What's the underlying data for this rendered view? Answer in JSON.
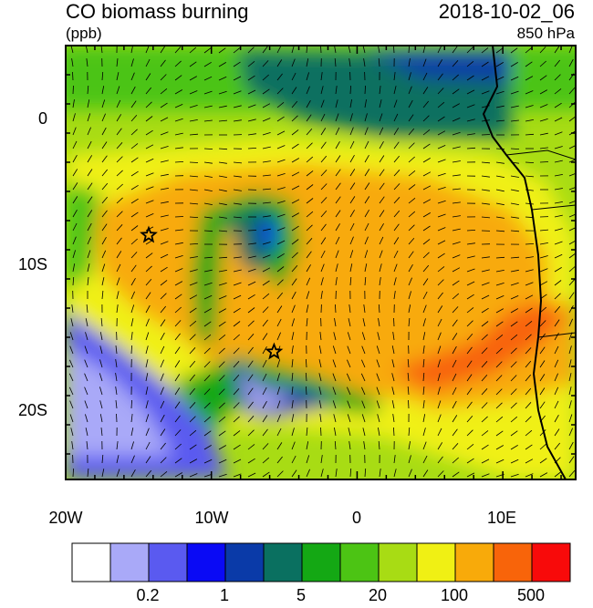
{
  "header": {
    "title": "CO biomass burning",
    "units": "(ppb)",
    "datetime": "2018-10-02_06",
    "level": "850 hPa"
  },
  "map": {
    "lat_ticks": [
      "0",
      "10S",
      "20S"
    ],
    "lon_ticks": [
      "20W",
      "10W",
      "0",
      "10E"
    ],
    "markers": [
      {
        "name": "star",
        "lon": -14.3,
        "lat": -8.0
      },
      {
        "name": "star",
        "lon": -5.7,
        "lat": -16.0
      }
    ]
  },
  "colorbar": {
    "colors": [
      "#ffffff",
      "#a9a9f8",
      "#5a5af0",
      "#0a0af5",
      "#0a3aa8",
      "#0a7060",
      "#14a814",
      "#4cc414",
      "#a8dc14",
      "#f0f014",
      "#f8aa0a",
      "#f8640a",
      "#f80a0a"
    ],
    "labels": [
      "0.2",
      "1",
      "5",
      "20",
      "100",
      "500"
    ]
  }
}
